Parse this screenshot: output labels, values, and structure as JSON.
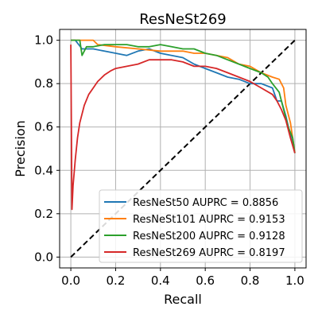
{
  "chart_data": {
    "type": "line",
    "title": "ResNeSt269",
    "xlabel": "Recall",
    "ylabel": "Precision",
    "xlim": [
      -0.05,
      1.05
    ],
    "ylim": [
      -0.05,
      1.05
    ],
    "xticks": [
      "0.0",
      "0.2",
      "0.4",
      "0.6",
      "0.8",
      "1.0"
    ],
    "yticks": [
      "0.0",
      "0.2",
      "0.4",
      "0.6",
      "0.8",
      "1.0"
    ],
    "grid": true,
    "legend_position": "bottom-right",
    "series": [
      {
        "name": "ResNeSt50 AUPRC = 0.8856",
        "color": "#1f77b4",
        "x": [
          0.0,
          0.02,
          0.05,
          0.1,
          0.15,
          0.2,
          0.25,
          0.3,
          0.35,
          0.4,
          0.45,
          0.5,
          0.55,
          0.6,
          0.65,
          0.7,
          0.75,
          0.8,
          0.85,
          0.9,
          0.92,
          0.94,
          0.96,
          0.98,
          1.0
        ],
        "y": [
          1.0,
          1.0,
          0.96,
          0.96,
          0.95,
          0.94,
          0.93,
          0.95,
          0.96,
          0.94,
          0.93,
          0.92,
          0.89,
          0.87,
          0.85,
          0.83,
          0.82,
          0.8,
          0.8,
          0.78,
          0.72,
          0.72,
          0.65,
          0.56,
          0.48
        ]
      },
      {
        "name": "ResNeSt101 AUPRC = 0.9153",
        "color": "#ff7f0e",
        "x": [
          0.0,
          0.05,
          0.1,
          0.12,
          0.2,
          0.3,
          0.4,
          0.5,
          0.55,
          0.6,
          0.65,
          0.7,
          0.75,
          0.8,
          0.85,
          0.9,
          0.93,
          0.95,
          0.96,
          0.98,
          1.0
        ],
        "y": [
          1.0,
          1.0,
          1.0,
          0.98,
          0.97,
          0.96,
          0.95,
          0.95,
          0.94,
          0.94,
          0.93,
          0.92,
          0.89,
          0.88,
          0.85,
          0.83,
          0.82,
          0.78,
          0.7,
          0.62,
          0.48
        ]
      },
      {
        "name": "ResNeSt200 AUPRC = 0.9128",
        "color": "#2ca02c",
        "x": [
          0.0,
          0.04,
          0.05,
          0.07,
          0.1,
          0.15,
          0.2,
          0.25,
          0.3,
          0.35,
          0.4,
          0.45,
          0.5,
          0.55,
          0.6,
          0.65,
          0.7,
          0.75,
          0.8,
          0.85,
          0.88,
          0.9,
          0.93,
          0.95,
          0.97,
          0.99,
          1.0
        ],
        "y": [
          1.0,
          1.0,
          0.93,
          0.97,
          0.97,
          0.98,
          0.98,
          0.98,
          0.97,
          0.97,
          0.98,
          0.97,
          0.96,
          0.96,
          0.94,
          0.93,
          0.91,
          0.89,
          0.87,
          0.85,
          0.83,
          0.8,
          0.76,
          0.68,
          0.6,
          0.55,
          0.48
        ]
      },
      {
        "name": "ResNeSt269 AUPRC = 0.8197",
        "color": "#d62728",
        "x": [
          0.0,
          0.005,
          0.01,
          0.02,
          0.03,
          0.04,
          0.06,
          0.08,
          0.1,
          0.12,
          0.15,
          0.18,
          0.2,
          0.25,
          0.3,
          0.35,
          0.4,
          0.45,
          0.5,
          0.55,
          0.6,
          0.65,
          0.7,
          0.75,
          0.8,
          0.85,
          0.9,
          0.92,
          0.94,
          0.96,
          0.98,
          1.0
        ],
        "y": [
          0.98,
          0.22,
          0.33,
          0.45,
          0.55,
          0.62,
          0.7,
          0.75,
          0.78,
          0.81,
          0.84,
          0.86,
          0.87,
          0.88,
          0.89,
          0.91,
          0.91,
          0.91,
          0.9,
          0.88,
          0.88,
          0.87,
          0.85,
          0.83,
          0.81,
          0.78,
          0.75,
          0.72,
          0.68,
          0.63,
          0.55,
          0.48
        ]
      }
    ],
    "reference_line": {
      "style": "dashed",
      "color": "#000000",
      "x": [
        0.0,
        1.0
      ],
      "y": [
        0.0,
        1.0
      ]
    }
  }
}
